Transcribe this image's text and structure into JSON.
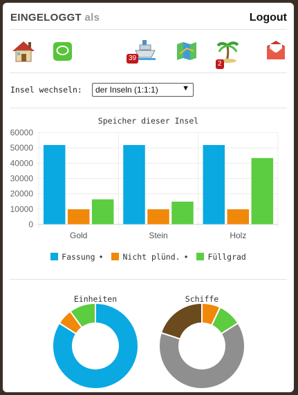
{
  "header": {
    "title": "EINGELOGGT",
    "title_suffix": "als",
    "logout_label": "Logout"
  },
  "toolbar": {
    "icons": [
      {
        "name": "home-icon"
      },
      {
        "name": "chat-icon"
      },
      {
        "name": "ship-icon",
        "badge": "39"
      },
      {
        "name": "map-icon"
      },
      {
        "name": "palm-island-icon",
        "badge": "2"
      },
      {
        "name": "mail-icon"
      }
    ]
  },
  "island_switch": {
    "label": "Insel wechseln:",
    "selected": "der Inseln (1:1:1)"
  },
  "colors": {
    "blue": "#0aa9e2",
    "orange": "#f0880a",
    "green": "#5ccc40",
    "gray": "#8f8f8f",
    "brown": "#6b4a1d"
  },
  "chart_data": [
    {
      "type": "bar",
      "title": "Speicher dieser Insel",
      "categories": [
        "Gold",
        "Stein",
        "Holz"
      ],
      "series": [
        {
          "name": "Fassung",
          "color": "#0aa9e2",
          "values": [
            52000,
            52000,
            52000
          ]
        },
        {
          "name": "Nicht plünd.",
          "color": "#f0880a",
          "values": [
            10000,
            10000,
            10000
          ]
        },
        {
          "name": "Füllgrad",
          "color": "#5ccc40",
          "values": [
            16500,
            15000,
            43500
          ]
        }
      ],
      "ylim": [
        0,
        60000
      ],
      "yticks": [
        "0",
        "10000",
        "20000",
        "30000",
        "40000",
        "50000",
        "60000"
      ],
      "legend": "bottom",
      "grid": true
    },
    {
      "type": "pie",
      "title": "Einheiten",
      "slices": [
        {
          "color": "#0aa9e2",
          "value": 0.84
        },
        {
          "color": "#f0880a",
          "value": 0.06
        },
        {
          "color": "#5ccc40",
          "value": 0.1
        }
      ]
    },
    {
      "type": "pie",
      "title": "Schiffe",
      "slices": [
        {
          "color": "#f0880a",
          "value": 0.07
        },
        {
          "color": "#5ccc40",
          "value": 0.09
        },
        {
          "color": "#8f8f8f",
          "value": 0.64
        },
        {
          "color": "#6b4a1d",
          "value": 0.2
        }
      ]
    }
  ]
}
